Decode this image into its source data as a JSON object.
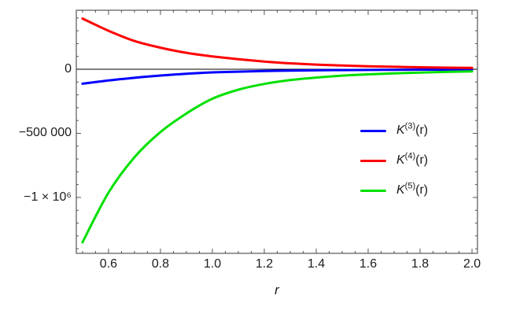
{
  "chart_data": {
    "type": "line",
    "title": "",
    "xlabel": "r",
    "ylabel": "",
    "grid": false,
    "legend_position": "inside-right-center",
    "xlim": [
      0.476,
      2.021
    ],
    "ylim": [
      -1436000,
      460000
    ],
    "zero_axis_line": 0,
    "x_ticks": {
      "major": [
        0.6,
        0.8,
        1.0,
        1.2,
        1.4,
        1.6,
        1.8,
        2.0
      ],
      "labels": [
        "0.6",
        "0.8",
        "1.0",
        "1.2",
        "1.4",
        "1.6",
        "1.8",
        "2.0"
      ],
      "minor_step": 0.05
    },
    "y_ticks": {
      "major": [
        0,
        -500000,
        -1000000
      ],
      "labels": [
        "0",
        "−500 000",
        "−1 × 10⁶"
      ],
      "minor_step": 100000
    },
    "x": [
      0.5,
      0.6,
      0.7,
      0.8,
      0.9,
      1.0,
      1.1,
      1.2,
      1.3,
      1.4,
      1.5,
      1.6,
      1.7,
      1.8,
      1.9,
      2.0
    ],
    "series": [
      {
        "name": "K^(3)(r)",
        "label_base": "K",
        "label_sup": "(3)",
        "label_arg": "(r)",
        "color": "#0000ff",
        "values": [
          -113000,
          -88000,
          -67000,
          -49000,
          -35000,
          -25000,
          -19000,
          -14500,
          -11000,
          -8500,
          -7000,
          -5500,
          -4500,
          -3500,
          -3000,
          -2500
        ]
      },
      {
        "name": "K^(4)(r)",
        "label_base": "K",
        "label_sup": "(4)",
        "label_arg": "(r)",
        "color": "#ff0000",
        "values": [
          395000,
          300000,
          220000,
          168000,
          128000,
          100000,
          78000,
          60000,
          46000,
          36000,
          29000,
          23000,
          19000,
          15000,
          12000,
          10000
        ]
      },
      {
        "name": "K^(5)(r)",
        "label_base": "K",
        "label_sup": "(5)",
        "label_arg": "(r)",
        "color": "#00e000",
        "values": [
          -1350000,
          -963000,
          -687000,
          -490000,
          -345000,
          -230000,
          -160000,
          -115000,
          -85000,
          -65000,
          -50000,
          -40000,
          -32000,
          -26000,
          -21000,
          -17000
        ]
      }
    ],
    "frame_color": "#565656",
    "axis_line_color": "#000000",
    "label_color": "#1c1c1c"
  }
}
